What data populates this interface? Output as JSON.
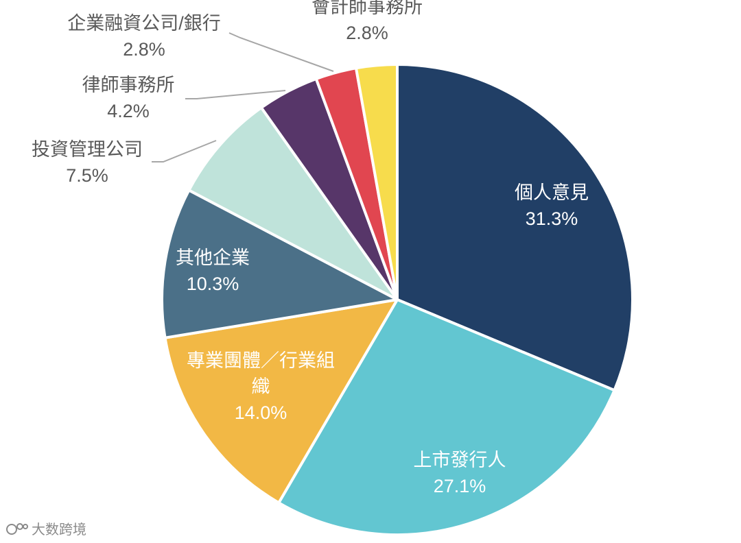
{
  "chart_data": {
    "type": "pie",
    "title": "",
    "start": "top",
    "direction": "clockwise",
    "slices": [
      {
        "label": "個人意見",
        "value": 31.3,
        "display": "31.3%",
        "color": "#213f66",
        "label_placement": "inside",
        "text_color": "#ffffff"
      },
      {
        "label": "上市發行人",
        "value": 27.1,
        "display": "27.1%",
        "color": "#62c6d1",
        "label_placement": "inside",
        "text_color": "#ffffff"
      },
      {
        "label": "專業團體／行業組織",
        "value": 14.0,
        "display": "14.0%",
        "color": "#f2b845",
        "label_placement": "inside",
        "text_color": "#ffffff"
      },
      {
        "label": "其他企業",
        "value": 10.3,
        "display": "10.3%",
        "color": "#4b7088",
        "label_placement": "inside",
        "text_color": "#ffffff"
      },
      {
        "label": "投資管理公司",
        "value": 7.5,
        "display": "7.5%",
        "color": "#bfe3da",
        "label_placement": "outside",
        "text_color": "#595959"
      },
      {
        "label": "律師事務所",
        "value": 4.2,
        "display": "4.2%",
        "color": "#573669",
        "label_placement": "outside",
        "text_color": "#595959"
      },
      {
        "label": "企業融資公司/銀行",
        "value": 2.8,
        "display": "2.8%",
        "color": "#e14650",
        "label_placement": "outside",
        "text_color": "#595959"
      },
      {
        "label": "會計師事務所",
        "value": 2.8,
        "display": "2.8%",
        "color": "#f7dc4c",
        "label_placement": "outside",
        "text_color": "#595959"
      }
    ]
  },
  "watermark": {
    "text": "大数跨境"
  }
}
